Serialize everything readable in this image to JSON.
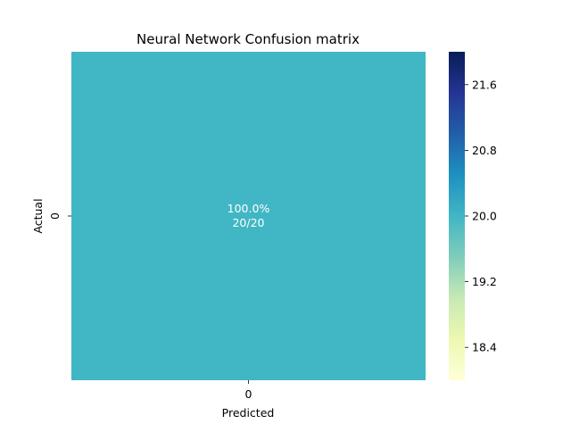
{
  "chart_data": {
    "type": "heatmap",
    "title": "Neural Network Confusion matrix",
    "xlabel": "Predicted",
    "ylabel": "Actual",
    "x_categories": [
      "0"
    ],
    "y_categories": [
      "0"
    ],
    "values": [
      [
        20
      ]
    ],
    "cell_labels": [
      [
        "100.0%\n20/20"
      ]
    ],
    "colormap": {
      "name": "YlGnBu",
      "vmin": 18.0,
      "vmax": 22.0,
      "stops": [
        "#ffffd9",
        "#edf8b1",
        "#c7e9b4",
        "#7fcdbb",
        "#41b6c4",
        "#1d91c0",
        "#225ea8",
        "#253494",
        "#081d58"
      ]
    },
    "colorbar": {
      "ticks": [
        18.4,
        19.2,
        20.0,
        20.8,
        21.6
      ],
      "tick_labels": [
        "18.4",
        "19.2",
        "20.0",
        "20.8",
        "21.6"
      ]
    }
  }
}
